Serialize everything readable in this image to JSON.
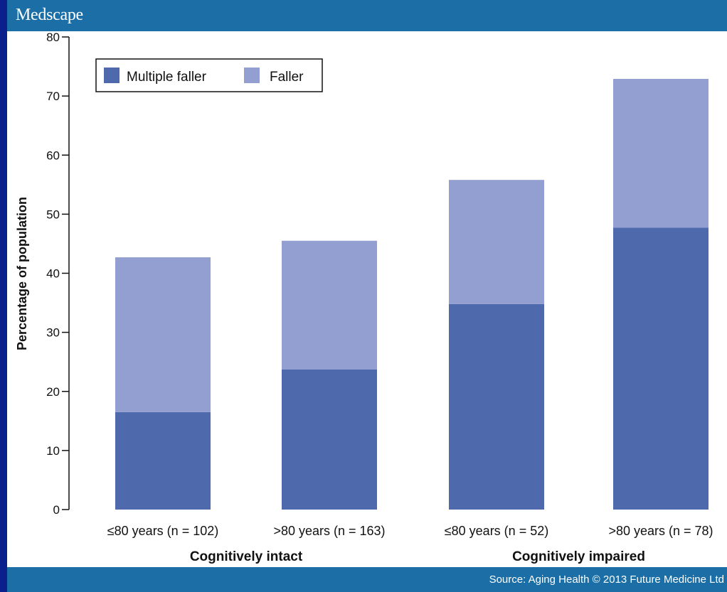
{
  "header": {
    "brand": "Medscape"
  },
  "footer": {
    "source": "Source: Aging Health © 2013 Future Medicine Ltd"
  },
  "colors": {
    "multiple_faller": "#4f69ad",
    "faller": "#939fd0",
    "bars_bg": "#1b6fa6"
  },
  "chart_data": {
    "type": "bar",
    "stacked": true,
    "categories": [
      "≤80 years (n = 102)",
      ">80 years (n = 163)",
      "≤80 years (n = 52)",
      ">80 years (n = 78)"
    ],
    "groups": [
      {
        "label": "Cognitively intact",
        "categories": [
          0,
          1
        ]
      },
      {
        "label": "Cognitively impaired",
        "categories": [
          2,
          3
        ]
      }
    ],
    "series": [
      {
        "name": "Multiple faller",
        "values": [
          16.5,
          23.7,
          34.8,
          47.7
        ]
      },
      {
        "name": "Faller",
        "values": [
          26.2,
          21.8,
          21.0,
          25.2
        ]
      }
    ],
    "ylabel": "Percentage of population",
    "xlabel": "",
    "ylim": [
      0,
      80
    ],
    "yticks": [
      0,
      10,
      20,
      30,
      40,
      50,
      60,
      70,
      80
    ],
    "legend": {
      "placement": "top-left",
      "entries": [
        "Multiple faller",
        "Faller"
      ]
    },
    "grid": false
  }
}
